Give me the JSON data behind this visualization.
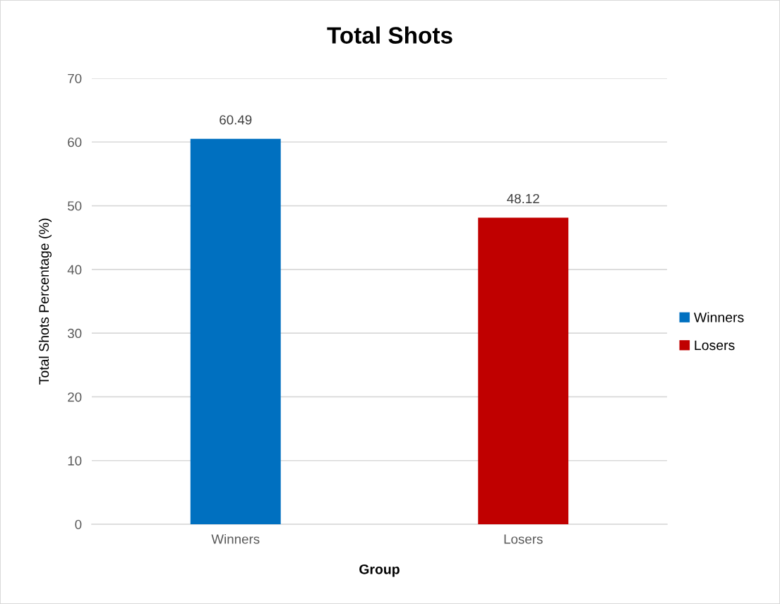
{
  "chart_data": {
    "type": "bar",
    "title": "Total Shots",
    "xlabel": "Group",
    "ylabel": "Total Shots Percentage (%)",
    "categories": [
      "Winners",
      "Losers"
    ],
    "series": [
      {
        "name": "Winners",
        "color": "#0070c0",
        "values": [
          60.49,
          null
        ]
      },
      {
        "name": "Losers",
        "color": "#c00000",
        "values": [
          null,
          48.12
        ]
      }
    ],
    "ylim": [
      0,
      70
    ],
    "yticks": [
      0,
      10,
      20,
      30,
      40,
      50,
      60,
      70
    ],
    "grid": "y",
    "legend": "right",
    "data_labels": true
  }
}
